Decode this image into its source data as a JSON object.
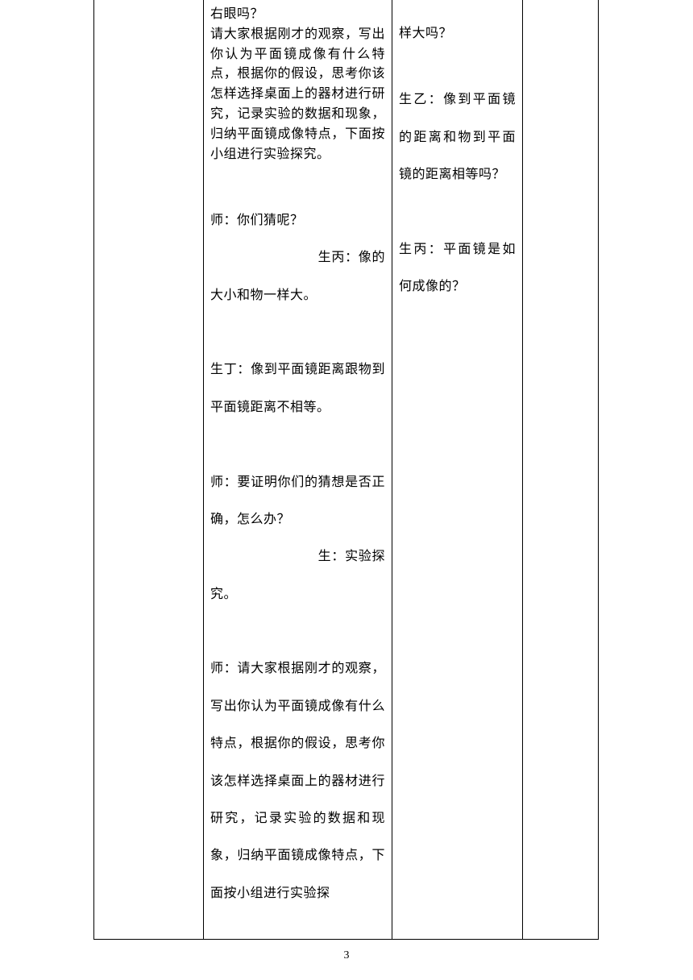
{
  "col2": {
    "tight": "右眼吗？\n请大家根据刚才的观察，写出你认为平面镜成像有什么特点，根据你的假设，思考你该怎样选择桌面上的器材进行研究，记录实验的数据和现象，归纳平面镜成像特点，下面按小组进行实验探究。",
    "loose": "　　　　　　　　　　　　师：你们猜呢？\n　　　　　　　　生丙：像的大小和物一样大。\n　　　　　　　　　　　　　生丁：像到平面镜距离跟物到平面镜距离不相等。\n　　　　　　　　　　　　师：要证明你们的猜想是否正确，怎么办？\n　　　　　　　　生：实验探究。\n　　　　　　　　　　　　师：请大家根据刚才的观察，写出你认为平面镜成像有什么特点，根据你的假设，思考你该怎样选择桌面上的器材进行研究，记录实验的数据和现象，归纳平面镜成像特点，下面按小组进行实验探"
  },
  "col3": {
    "line1": "样大吗？",
    "loose": "　　　　　　　　生乙：像到平面镜的距离和物到平面镜的距离相等吗？\n　　　　　　　　生丙：平面镜是如何成像的？"
  },
  "pageNumber": "3"
}
